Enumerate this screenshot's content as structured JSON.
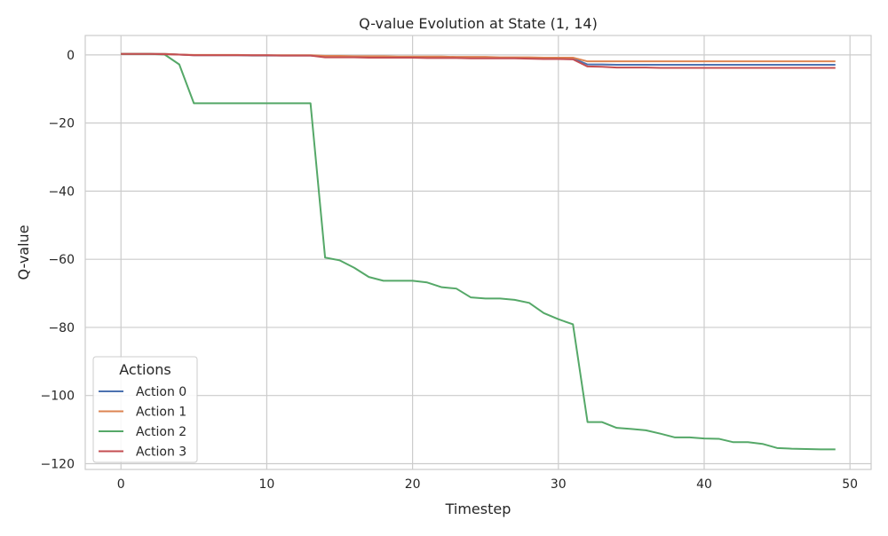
{
  "chart_data": {
    "type": "line",
    "title": "Q-value Evolution at State (1, 14)",
    "xlabel": "Timestep",
    "ylabel": "Q-value",
    "xlim": [
      -2.45,
      51.45
    ],
    "ylim": [
      -121.7,
      5.7
    ],
    "xticks": [
      0,
      10,
      20,
      30,
      40,
      50
    ],
    "yticks": [
      0,
      -20,
      -40,
      -60,
      -80,
      -100,
      -120
    ],
    "xtick_labels": [
      "0",
      "10",
      "20",
      "30",
      "40",
      "50"
    ],
    "ytick_labels": [
      "0",
      "−20",
      "−40",
      "−60",
      "−80",
      "−100",
      "−120"
    ],
    "grid": true,
    "legend": {
      "title": "Actions",
      "placement": "lower-left"
    },
    "x": [
      0,
      1,
      2,
      3,
      4,
      5,
      6,
      7,
      8,
      9,
      10,
      11,
      12,
      13,
      14,
      15,
      16,
      17,
      18,
      19,
      20,
      21,
      22,
      23,
      24,
      25,
      26,
      27,
      28,
      29,
      30,
      31,
      32,
      33,
      34,
      35,
      36,
      37,
      38,
      39,
      40,
      41,
      42,
      43,
      44,
      45,
      46,
      47,
      48,
      49
    ],
    "series": [
      {
        "name": "Action 0",
        "color": "#4c72b0",
        "values": [
          0.3,
          0.3,
          0.3,
          0.3,
          0.1,
          -0.1,
          -0.1,
          -0.1,
          -0.1,
          -0.2,
          -0.2,
          -0.2,
          -0.2,
          -0.2,
          -0.5,
          -0.5,
          -0.5,
          -0.6,
          -0.6,
          -0.6,
          -0.6,
          -0.7,
          -0.7,
          -0.7,
          -0.7,
          -0.8,
          -0.8,
          -0.8,
          -0.9,
          -0.9,
          -1.0,
          -1.0,
          -2.8,
          -2.8,
          -2.9,
          -2.9,
          -2.9,
          -2.9,
          -2.9,
          -2.9,
          -2.9,
          -2.9,
          -2.9,
          -2.9,
          -2.9,
          -2.9,
          -2.9,
          -2.9,
          -2.9,
          -2.9
        ]
      },
      {
        "name": "Action 1",
        "color": "#dd8452",
        "values": [
          0.3,
          0.3,
          0.3,
          0.3,
          0.1,
          0.0,
          0.0,
          0.0,
          0.0,
          -0.1,
          -0.1,
          -0.1,
          -0.1,
          -0.1,
          -0.3,
          -0.3,
          -0.4,
          -0.4,
          -0.4,
          -0.5,
          -0.5,
          -0.5,
          -0.5,
          -0.6,
          -0.6,
          -0.6,
          -0.7,
          -0.7,
          -0.7,
          -0.8,
          -0.8,
          -0.8,
          -1.9,
          -1.9,
          -1.9,
          -1.9,
          -1.9,
          -1.9,
          -1.9,
          -1.9,
          -1.9,
          -1.9,
          -1.9,
          -1.9,
          -1.9,
          -1.9,
          -1.9,
          -1.9,
          -1.9,
          -1.9
        ]
      },
      {
        "name": "Action 2",
        "color": "#55a868",
        "values": [
          0.3,
          0.3,
          0.3,
          0.1,
          -2.8,
          -14.2,
          -14.2,
          -14.2,
          -14.2,
          -14.2,
          -14.2,
          -14.2,
          -14.2,
          -14.2,
          -59.5,
          -60.3,
          -62.5,
          -65.2,
          -66.3,
          -66.3,
          -66.3,
          -66.8,
          -68.2,
          -68.6,
          -71.2,
          -71.5,
          -71.5,
          -71.9,
          -72.8,
          -75.8,
          -77.6,
          -79.1,
          -107.8,
          -107.8,
          -109.5,
          -109.8,
          -110.2,
          -111.2,
          -112.3,
          -112.3,
          -112.6,
          -112.7,
          -113.7,
          -113.7,
          -114.2,
          -115.4,
          -115.6,
          -115.7,
          -115.8,
          -115.8
        ]
      },
      {
        "name": "Action 3",
        "color": "#c44e52",
        "values": [
          0.3,
          0.3,
          0.3,
          0.2,
          0.1,
          -0.1,
          -0.1,
          -0.1,
          -0.1,
          -0.1,
          -0.1,
          -0.2,
          -0.2,
          -0.2,
          -0.7,
          -0.7,
          -0.7,
          -0.8,
          -0.8,
          -0.8,
          -0.8,
          -0.9,
          -0.9,
          -0.9,
          -1.0,
          -1.0,
          -1.0,
          -1.0,
          -1.1,
          -1.2,
          -1.2,
          -1.3,
          -3.4,
          -3.5,
          -3.7,
          -3.7,
          -3.7,
          -3.8,
          -3.8,
          -3.8,
          -3.8,
          -3.8,
          -3.8,
          -3.8,
          -3.8,
          -3.8,
          -3.8,
          -3.8,
          -3.8,
          -3.8
        ]
      }
    ]
  }
}
